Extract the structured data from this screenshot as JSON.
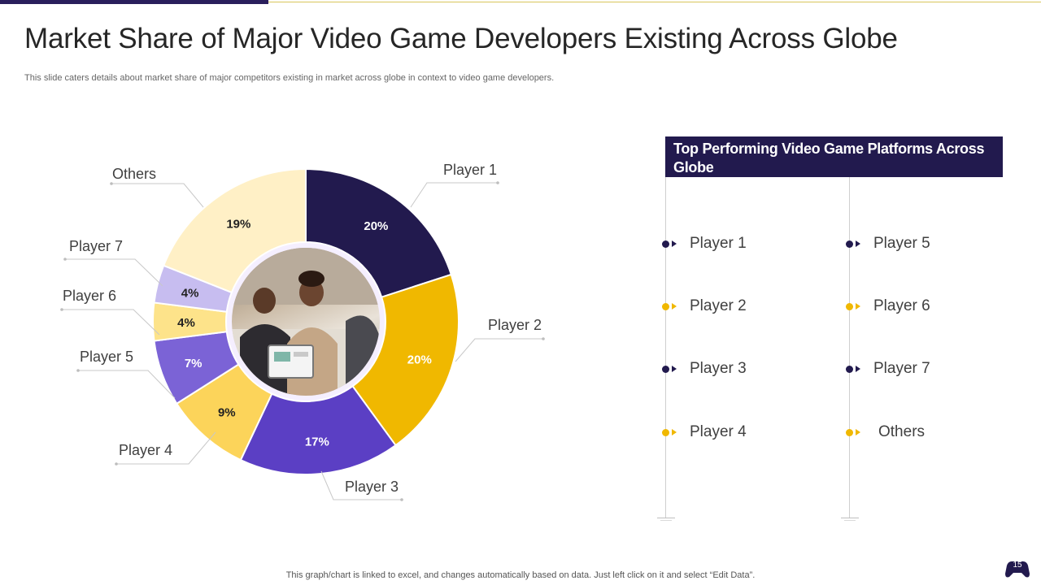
{
  "slide": {
    "title": "Market Share of Major Video Game Developers Existing Across Globe",
    "subtitle": "This slide caters details about market share of major competitors existing in market across globe in context to video game developers.",
    "footer": "This graph/chart is linked to excel,  and changes automatically based on data. Just left click on it and select “Edit Data”.",
    "page_number": "15"
  },
  "colors": {
    "dark": "#221a4e",
    "yellow": "#f0b800"
  },
  "chart_data": {
    "type": "pie",
    "variant": "donut",
    "categories": [
      "Player 1",
      "Player 2",
      "Player 3",
      "Player 4",
      "Player 5",
      "Player 6",
      "Player 7",
      "Others"
    ],
    "values": [
      20,
      20,
      17,
      9,
      7,
      4,
      4,
      19
    ],
    "labels": [
      "20%",
      "20%",
      "17%",
      "9%",
      "7%",
      "4%",
      "4%",
      "19%"
    ],
    "colors": [
      "#221a4e",
      "#f0b800",
      "#5b3fc4",
      "#fcd45a",
      "#7b63d6",
      "#fde38a",
      "#c7bdf0",
      "#fff0c6"
    ]
  },
  "panel": {
    "title": "Top Performing Video Game Platforms Across Globe",
    "left_items": [
      {
        "label": "Player 1",
        "color": "#221a4e"
      },
      {
        "label": "Player 2",
        "color": "#f0b800"
      },
      {
        "label": "Player 3",
        "color": "#221a4e"
      },
      {
        "label": "Player 4",
        "color": "#f0b800"
      }
    ],
    "right_items": [
      {
        "label": "Player 5",
        "color": "#221a4e"
      },
      {
        "label": "Player 6",
        "color": "#f0b800"
      },
      {
        "label": "Player 7",
        "color": "#221a4e"
      },
      {
        "label": "Others",
        "color": "#f0b800"
      }
    ]
  }
}
